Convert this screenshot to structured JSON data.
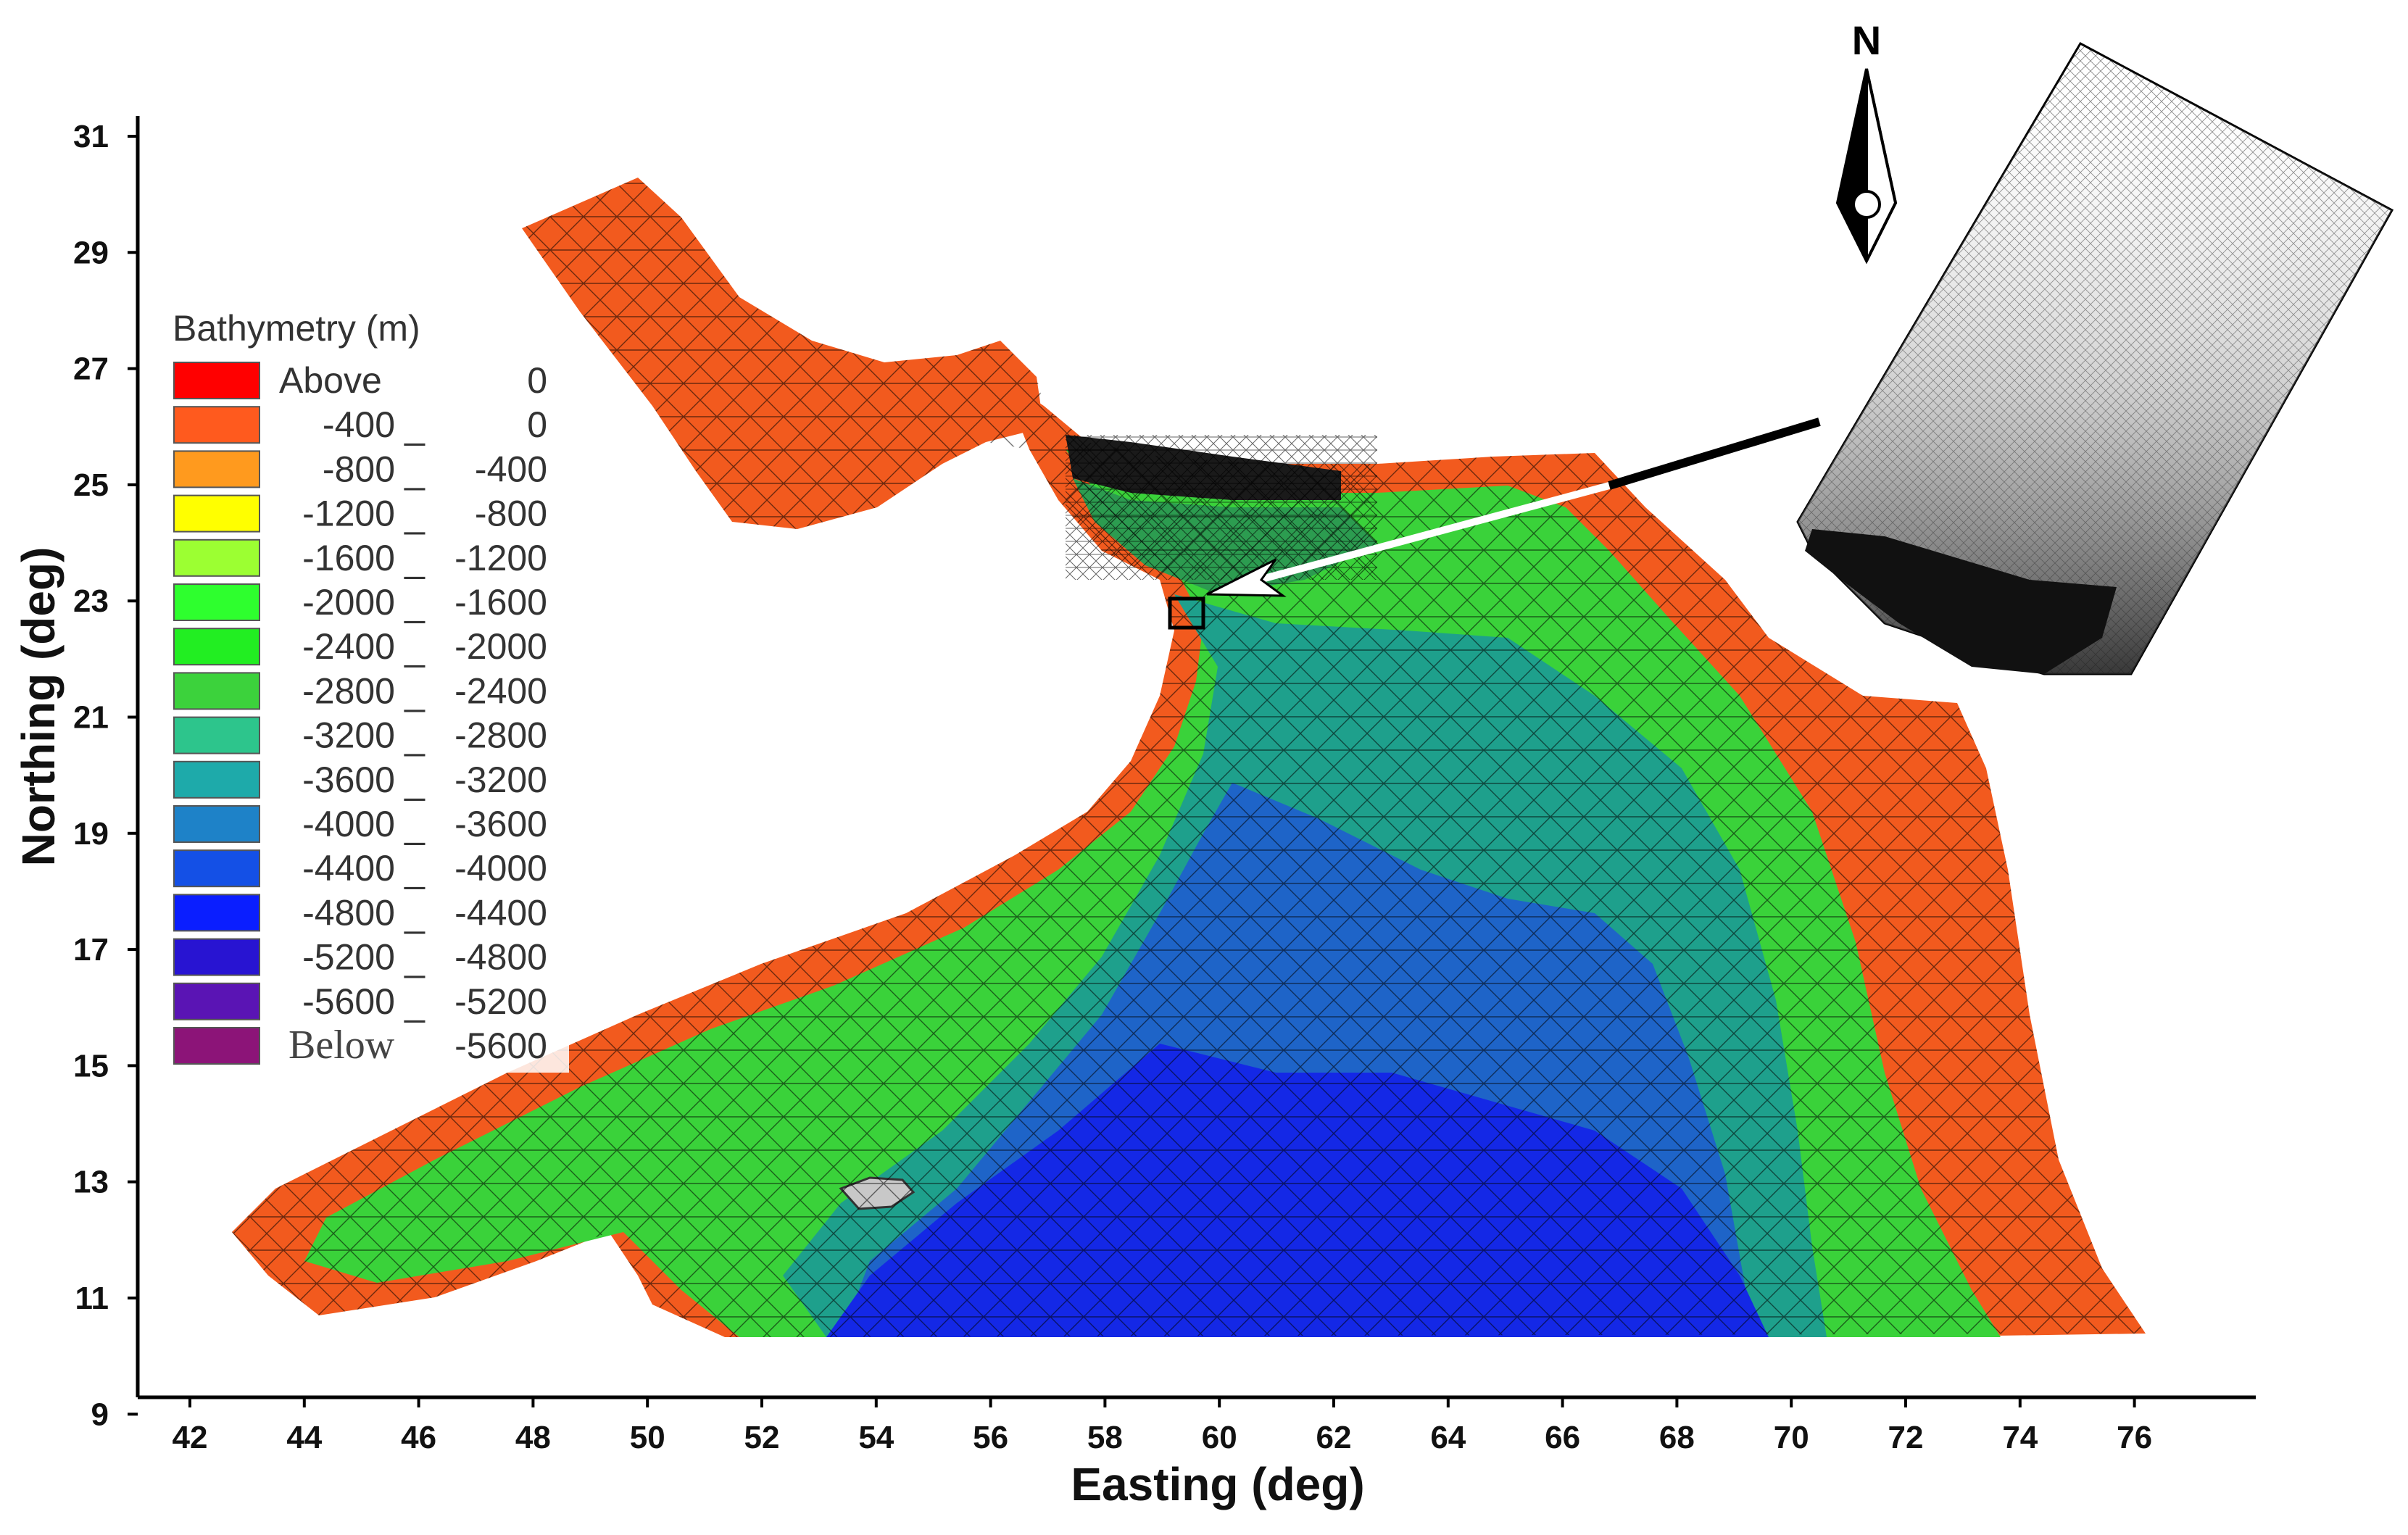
{
  "axes": {
    "x_title": "Easting (deg)",
    "y_title": "Northing (deg)",
    "x_ticks": [
      "42",
      "44",
      "46",
      "48",
      "50",
      "52",
      "54",
      "56",
      "58",
      "60",
      "62",
      "64",
      "66",
      "68",
      "70",
      "72",
      "74",
      "76"
    ],
    "y_ticks": [
      "31",
      "29",
      "27",
      "25",
      "23",
      "21",
      "19",
      "17",
      "15",
      "13",
      "11",
      "9"
    ]
  },
  "legend": {
    "title": "Bathymetry (m)",
    "items": [
      {
        "low": "Above",
        "high": "0",
        "color": "#ff0000"
      },
      {
        "low": "-400",
        "high": "0",
        "color": "#ff5a1e"
      },
      {
        "low": "-800",
        "high": "-400",
        "color": "#ff9a1e"
      },
      {
        "low": "-1200",
        "high": "-800",
        "color": "#ffff00"
      },
      {
        "low": "-1600",
        "high": "-1200",
        "color": "#9cff32"
      },
      {
        "low": "-2000",
        "high": "-1600",
        "color": "#2eff2e"
      },
      {
        "low": "-2400",
        "high": "-2000",
        "color": "#22ee22"
      },
      {
        "low": "-2800",
        "high": "-2400",
        "color": "#3cd23c"
      },
      {
        "low": "-3200",
        "high": "-2800",
        "color": "#2dc58c"
      },
      {
        "low": "-3600",
        "high": "-3200",
        "color": "#1eaaaa"
      },
      {
        "low": "-4000",
        "high": "-3600",
        "color": "#1e82c8"
      },
      {
        "low": "-4400",
        "high": "-4000",
        "color": "#1450e6"
      },
      {
        "low": "-4800",
        "high": "-4400",
        "color": "#0a1eff"
      },
      {
        "low": "-5200",
        "high": "-4800",
        "color": "#2814d2"
      },
      {
        "low": "-5600",
        "high": "-5200",
        "color": "#5a14b4"
      },
      {
        "low": "Below",
        "high": "-5600",
        "color": "#8c1478"
      }
    ]
  },
  "north_arrow": {
    "label": "N"
  },
  "colors": {
    "land_shelf": "#f25a1e",
    "shallow_green": "#3ad23a",
    "mid_teal": "#1ea08c",
    "deep_blue": "#1e64c8",
    "deepest_blue": "#1428e6",
    "mesh_line": "#000000"
  }
}
